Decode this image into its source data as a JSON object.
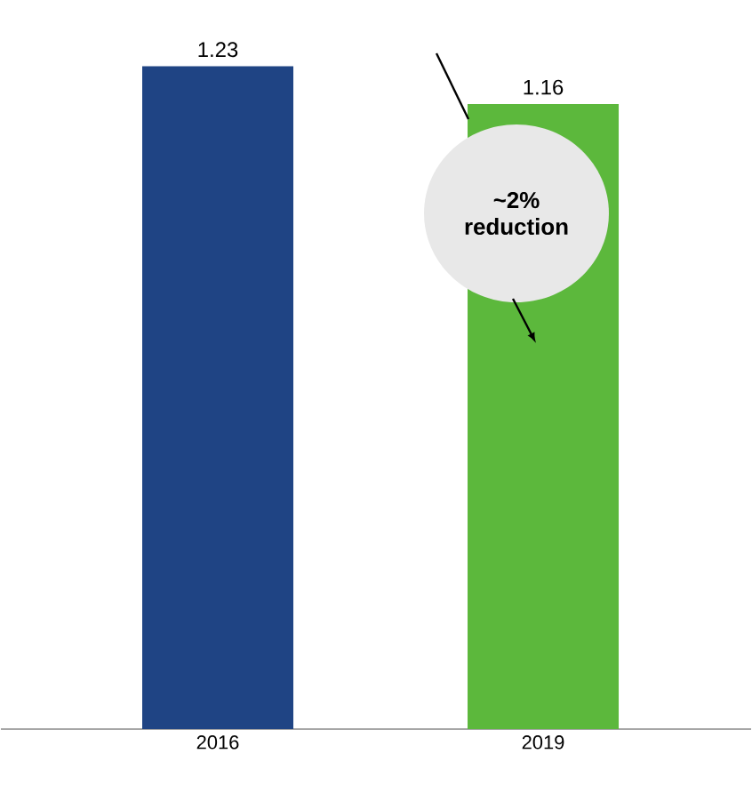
{
  "chart_data": {
    "type": "bar",
    "categories": [
      "2016",
      "2019"
    ],
    "values": [
      1.23,
      1.16
    ],
    "colors": [
      "#1f4484",
      "#5cb83c"
    ],
    "data_labels": true,
    "annotations": [
      "~2% reduction"
    ]
  }
}
